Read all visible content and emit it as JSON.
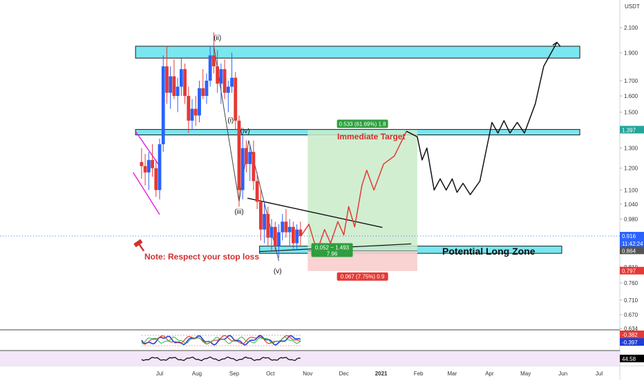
{
  "chart_data": {
    "type": "candlestick",
    "quote_currency": "USDT",
    "y_axis": {
      "scale": "log",
      "ticks": [
        "2.100",
        "1.900",
        "1.700",
        "1.600",
        "1.500",
        "1.400",
        "1.300",
        "1.200",
        "1.100",
        "1.040",
        "0.980",
        "0.916",
        "0.864",
        "0.810",
        "0.760",
        "0.710",
        "0.670",
        "0.634"
      ]
    },
    "x_axis": {
      "ticks": [
        {
          "label": "Jul",
          "x": "2020-07-01"
        },
        {
          "label": "Aug",
          "x": "2020-08-01"
        },
        {
          "label": "Sep",
          "x": "2020-09-01"
        },
        {
          "label": "Oct",
          "x": "2020-10-01"
        },
        {
          "label": "Nov",
          "x": "2020-11-01"
        },
        {
          "label": "Dec",
          "x": "2020-12-01"
        },
        {
          "label": "2021",
          "x": "2021-01-01"
        },
        {
          "label": "Feb",
          "x": "2021-02-01"
        },
        {
          "label": "Mar",
          "x": "2021-03-01"
        },
        {
          "label": "Apr",
          "x": "2021-04-01"
        },
        {
          "label": "May",
          "x": "2021-05-01"
        },
        {
          "label": "Jun",
          "x": "2021-06-01"
        },
        {
          "label": "Jul",
          "x": "2021-07-01"
        }
      ]
    },
    "price_labels": [
      {
        "value": "1.397",
        "color": "#26a69a"
      },
      {
        "value": "0.916",
        "color": "#2962ff"
      },
      {
        "value": "11:42:24",
        "color": "#2962ff"
      },
      {
        "value": "0.864",
        "color": "#555555"
      },
      {
        "value": "0.797",
        "color": "#e53935"
      }
    ],
    "candles": [
      {
        "x": "2020-06-16",
        "y": [
          1.23,
          1.3,
          1.15,
          1.21
        ]
      },
      {
        "x": "2020-06-19",
        "y": [
          1.21,
          1.27,
          1.12,
          1.18
        ]
      },
      {
        "x": "2020-06-22",
        "y": [
          1.18,
          1.28,
          1.1,
          1.24
        ]
      },
      {
        "x": "2020-06-25",
        "y": [
          1.24,
          1.32,
          1.16,
          1.2
        ]
      },
      {
        "x": "2020-06-28",
        "y": [
          1.2,
          1.24,
          1.07,
          1.1
        ]
      },
      {
        "x": "2020-07-01",
        "y": [
          1.1,
          1.35,
          1.06,
          1.32
        ]
      },
      {
        "x": "2020-07-04",
        "y": [
          1.32,
          1.88,
          1.28,
          1.8
        ]
      },
      {
        "x": "2020-07-07",
        "y": [
          1.8,
          1.95,
          1.55,
          1.62
        ]
      },
      {
        "x": "2020-07-10",
        "y": [
          1.62,
          1.8,
          1.52,
          1.73
        ]
      },
      {
        "x": "2020-07-13",
        "y": [
          1.73,
          1.85,
          1.58,
          1.6
        ]
      },
      {
        "x": "2020-07-16",
        "y": [
          1.6,
          1.72,
          1.5,
          1.66
        ]
      },
      {
        "x": "2020-07-19",
        "y": [
          1.66,
          1.86,
          1.6,
          1.78
        ]
      },
      {
        "x": "2020-07-22",
        "y": [
          1.78,
          1.82,
          1.55,
          1.6
        ]
      },
      {
        "x": "2020-07-25",
        "y": [
          1.6,
          1.66,
          1.38,
          1.45
        ]
      },
      {
        "x": "2020-07-28",
        "y": [
          1.45,
          1.58,
          1.4,
          1.52
        ]
      },
      {
        "x": "2020-07-31",
        "y": [
          1.52,
          1.6,
          1.42,
          1.48
        ]
      },
      {
        "x": "2020-08-03",
        "y": [
          1.48,
          1.7,
          1.44,
          1.65
        ]
      },
      {
        "x": "2020-08-06",
        "y": [
          1.65,
          1.78,
          1.58,
          1.6
        ]
      },
      {
        "x": "2020-08-09",
        "y": [
          1.6,
          1.75,
          1.55,
          1.7
        ]
      },
      {
        "x": "2020-08-12",
        "y": [
          1.7,
          1.95,
          1.66,
          1.88
        ]
      },
      {
        "x": "2020-08-15",
        "y": [
          1.88,
          2.06,
          1.75,
          1.8
        ]
      },
      {
        "x": "2020-08-18",
        "y": [
          1.8,
          1.92,
          1.62,
          1.68
        ]
      },
      {
        "x": "2020-08-21",
        "y": [
          1.68,
          1.82,
          1.55,
          1.78
        ]
      },
      {
        "x": "2020-08-24",
        "y": [
          1.78,
          1.85,
          1.58,
          1.62
        ]
      },
      {
        "x": "2020-08-27",
        "y": [
          1.62,
          1.7,
          1.5,
          1.66
        ]
      },
      {
        "x": "2020-08-30",
        "y": [
          1.66,
          1.9,
          1.62,
          1.72
        ]
      },
      {
        "x": "2020-09-02",
        "y": [
          1.72,
          1.76,
          1.4,
          1.45
        ]
      },
      {
        "x": "2020-09-05",
        "y": [
          1.45,
          1.48,
          1.03,
          1.1
        ]
      },
      {
        "x": "2020-09-08",
        "y": [
          1.1,
          1.38,
          1.06,
          1.3
        ]
      },
      {
        "x": "2020-09-11",
        "y": [
          1.3,
          1.34,
          1.18,
          1.22
        ]
      },
      {
        "x": "2020-09-14",
        "y": [
          1.22,
          1.32,
          1.14,
          1.28
        ]
      },
      {
        "x": "2020-09-17",
        "y": [
          1.28,
          1.34,
          1.1,
          1.14
        ]
      },
      {
        "x": "2020-09-20",
        "y": [
          1.14,
          1.18,
          1.02,
          1.05
        ]
      },
      {
        "x": "2020-09-23",
        "y": [
          1.05,
          1.1,
          0.9,
          0.94
        ]
      },
      {
        "x": "2020-09-26",
        "y": [
          0.94,
          1.05,
          0.89,
          1.0
        ]
      },
      {
        "x": "2020-09-29",
        "y": [
          1.0,
          1.03,
          0.88,
          0.91
        ]
      },
      {
        "x": "2020-10-02",
        "y": [
          0.91,
          0.98,
          0.86,
          0.95
        ]
      },
      {
        "x": "2020-10-05",
        "y": [
          0.95,
          0.97,
          0.86,
          0.88
        ]
      },
      {
        "x": "2020-10-08",
        "y": [
          0.88,
          0.96,
          0.84,
          0.93
        ]
      },
      {
        "x": "2020-10-11",
        "y": [
          0.93,
          1.0,
          0.9,
          0.97
        ]
      },
      {
        "x": "2020-10-14",
        "y": [
          0.97,
          1.02,
          0.91,
          0.93
        ]
      },
      {
        "x": "2020-10-17",
        "y": [
          0.93,
          0.98,
          0.88,
          0.95
        ]
      },
      {
        "x": "2020-10-20",
        "y": [
          0.95,
          0.97,
          0.87,
          0.89
        ]
      },
      {
        "x": "2020-10-23",
        "y": [
          0.89,
          0.96,
          0.87,
          0.94
        ]
      },
      {
        "x": "2020-10-26",
        "y": [
          0.94,
          0.97,
          0.88,
          0.916
        ]
      }
    ],
    "zones": [
      {
        "name": "top-zone",
        "x": [
          "2020-06-11",
          "2021-06-15"
        ],
        "y": [
          1.86,
          1.95
        ]
      },
      {
        "name": "immediate-target-zone",
        "x": [
          "2020-06-11",
          "2021-06-15"
        ],
        "y": [
          1.37,
          1.4
        ]
      },
      {
        "name": "potential-long-zone",
        "x": [
          "2020-09-22",
          "2021-05-31"
        ],
        "y": [
          0.855,
          0.88
        ]
      }
    ],
    "position": {
      "entry_x": "2020-11-01",
      "exit_x": "2021-01-31",
      "target": 1.397,
      "entry": 0.864,
      "stop": 0.797,
      "profit_label": "0.533 (61.69%) 1.8",
      "stop_label": "0.067 (7.75%) 0.9",
      "ratio_label": [
        "0.052 ~ 1.493",
        "7.96"
      ]
    },
    "texts": {
      "immediate_target": "Immediate Target",
      "potential_long_zone": "Potential Long Zone",
      "note": "Note: Respect your stop loss"
    },
    "wave_labels": [
      {
        "text": "(ii)",
        "x": "2020-08-18",
        "y": 2.0
      },
      {
        "text": "(i)",
        "x": "2020-08-29",
        "y": 1.44
      },
      {
        "text": "(iv)",
        "x": "2020-09-10",
        "y": 1.38
      },
      {
        "text": "(iii)",
        "x": "2020-09-05",
        "y": 1.0
      },
      {
        "text": "(v)",
        "x": "2020-10-07",
        "y": 0.79
      }
    ],
    "indicators": [
      {
        "name": "oscillator",
        "values": [
          "-0.382",
          "-0.397"
        ],
        "colors": [
          "#e53935",
          "#1e3fd6"
        ]
      },
      {
        "name": "rsi",
        "values": [
          "44.58"
        ],
        "colors": [
          "#000000"
        ]
      }
    ]
  }
}
